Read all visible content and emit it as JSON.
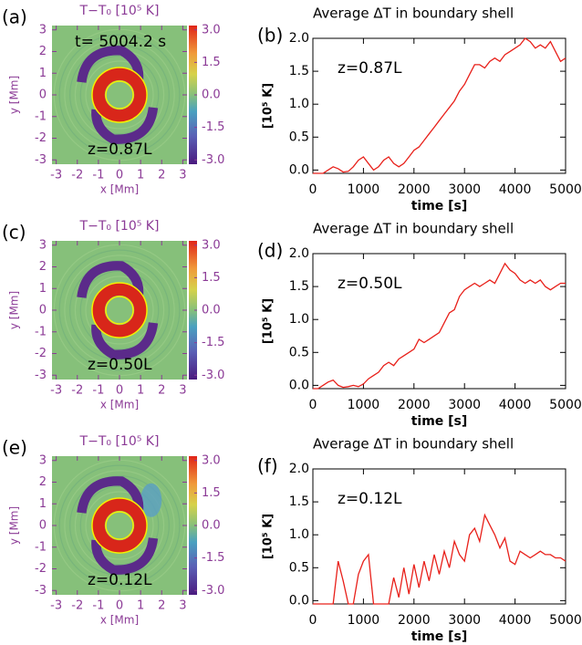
{
  "chart_data": [
    {
      "type": "heatmap",
      "panel_label": "(a)",
      "title": "T−T₀ [10⁵ K]",
      "annotations": [
        "t= 5004.2 s",
        "z=0.87L"
      ],
      "xlabel": "x [Mm]",
      "ylabel": "y [Mm]",
      "xlim": [
        -3.2,
        3.2
      ],
      "ylim": [
        -3.2,
        3.2
      ],
      "xticks": [
        -3,
        -2,
        -1,
        0,
        1,
        2,
        3
      ],
      "yticks": [
        -3,
        -2,
        -1,
        0,
        1,
        2,
        3
      ],
      "clim": [
        -3.2,
        3.2
      ],
      "cticks": [
        {
          "value": -3,
          "label": "-3.0"
        },
        {
          "value": -1.5,
          "label": "-1.5"
        },
        {
          "value": 0,
          "label": "0.0"
        },
        {
          "value": 1.5,
          "label": "1.5"
        },
        {
          "value": 3,
          "label": "3.0"
        }
      ]
    },
    {
      "type": "line",
      "panel_label": "(b)",
      "title": "Average ΔT in boundary shell",
      "annotations": [
        "z=0.87L"
      ],
      "xlabel": "time [s]",
      "ylabel": "[10⁵ K]",
      "color": "#e8201a",
      "xlim": [
        0,
        5000
      ],
      "ylim": [
        -0.05,
        2.0
      ],
      "xticks": [
        0,
        1000,
        2000,
        3000,
        4000,
        5000
      ],
      "yticks": [
        {
          "value": 0,
          "label": "0.0"
        },
        {
          "value": 0.5,
          "label": "0.5"
        },
        {
          "value": 1,
          "label": "1.0"
        },
        {
          "value": 1.5,
          "label": "1.5"
        },
        {
          "value": 2,
          "label": "2.0"
        }
      ],
      "x": [
        0,
        100,
        200,
        300,
        400,
        500,
        600,
        700,
        800,
        900,
        1000,
        1100,
        1200,
        1300,
        1400,
        1500,
        1600,
        1700,
        1800,
        1900,
        2000,
        2100,
        2200,
        2300,
        2400,
        2500,
        2600,
        2700,
        2800,
        2900,
        3000,
        3100,
        3200,
        3300,
        3400,
        3500,
        3600,
        3700,
        3800,
        3900,
        4000,
        4100,
        4200,
        4300,
        4400,
        4500,
        4600,
        4700,
        4800,
        4900,
        5000
      ],
      "values": [
        -0.05,
        -0.05,
        -0.05,
        0.0,
        0.05,
        0.02,
        -0.03,
        -0.02,
        0.05,
        0.15,
        0.2,
        0.1,
        0.0,
        0.05,
        0.15,
        0.2,
        0.1,
        0.05,
        0.1,
        0.2,
        0.3,
        0.35,
        0.45,
        0.55,
        0.65,
        0.75,
        0.85,
        0.95,
        1.05,
        1.2,
        1.3,
        1.45,
        1.6,
        1.6,
        1.55,
        1.65,
        1.7,
        1.65,
        1.75,
        1.8,
        1.85,
        1.9,
        2.0,
        1.95,
        1.85,
        1.9,
        1.85,
        1.95,
        1.8,
        1.65,
        1.7
      ]
    },
    {
      "type": "heatmap",
      "panel_label": "(c)",
      "title": "T−T₀ [10⁵ K]",
      "annotations": [
        "z=0.50L"
      ],
      "xlabel": "x [Mm]",
      "ylabel": "y [Mm]",
      "xlim": [
        -3.2,
        3.2
      ],
      "ylim": [
        -3.2,
        3.2
      ],
      "xticks": [
        -3,
        -2,
        -1,
        0,
        1,
        2,
        3
      ],
      "yticks": [
        -3,
        -2,
        -1,
        0,
        1,
        2,
        3
      ],
      "clim": [
        -3.2,
        3.2
      ],
      "cticks": [
        {
          "value": -3,
          "label": "-3.0"
        },
        {
          "value": -1.5,
          "label": "-1.5"
        },
        {
          "value": 0,
          "label": "0.0"
        },
        {
          "value": 1.5,
          "label": "1.5"
        },
        {
          "value": 3,
          "label": "3.0"
        }
      ]
    },
    {
      "type": "line",
      "panel_label": "(d)",
      "title": "Average ΔT in boundary shell",
      "annotations": [
        "z=0.50L"
      ],
      "xlabel": "time [s]",
      "ylabel": "[10⁵ K]",
      "color": "#e8201a",
      "xlim": [
        0,
        5000
      ],
      "ylim": [
        -0.05,
        2.0
      ],
      "xticks": [
        0,
        1000,
        2000,
        3000,
        4000,
        5000
      ],
      "yticks": [
        {
          "value": 0,
          "label": "0.0"
        },
        {
          "value": 0.5,
          "label": "0.5"
        },
        {
          "value": 1,
          "label": "1.0"
        },
        {
          "value": 1.5,
          "label": "1.5"
        },
        {
          "value": 2,
          "label": "2.0"
        }
      ],
      "x": [
        0,
        100,
        200,
        300,
        400,
        500,
        600,
        700,
        800,
        900,
        1000,
        1100,
        1200,
        1300,
        1400,
        1500,
        1600,
        1700,
        1800,
        1900,
        2000,
        2100,
        2200,
        2300,
        2400,
        2500,
        2600,
        2700,
        2800,
        2900,
        3000,
        3100,
        3200,
        3300,
        3400,
        3500,
        3600,
        3700,
        3800,
        3900,
        4000,
        4100,
        4200,
        4300,
        4400,
        4500,
        4600,
        4700,
        4800,
        4900,
        5000
      ],
      "values": [
        -0.05,
        -0.05,
        0.0,
        0.05,
        0.08,
        0.0,
        -0.03,
        -0.02,
        0.0,
        -0.02,
        0.02,
        0.1,
        0.15,
        0.2,
        0.3,
        0.35,
        0.3,
        0.4,
        0.45,
        0.5,
        0.55,
        0.7,
        0.65,
        0.7,
        0.75,
        0.8,
        0.95,
        1.1,
        1.15,
        1.35,
        1.45,
        1.5,
        1.55,
        1.5,
        1.55,
        1.6,
        1.55,
        1.7,
        1.85,
        1.75,
        1.7,
        1.6,
        1.55,
        1.6,
        1.55,
        1.6,
        1.5,
        1.45,
        1.5,
        1.55,
        1.55
      ]
    },
    {
      "type": "heatmap",
      "panel_label": "(e)",
      "title": "T−T₀ [10⁵ K]",
      "annotations": [
        "z=0.12L"
      ],
      "xlabel": "x [Mm]",
      "ylabel": "y [Mm]",
      "xlim": [
        -3.2,
        3.2
      ],
      "ylim": [
        -3.2,
        3.2
      ],
      "xticks": [
        -3,
        -2,
        -1,
        0,
        1,
        2,
        3
      ],
      "yticks": [
        -3,
        -2,
        -1,
        0,
        1,
        2,
        3
      ],
      "clim": [
        -3.2,
        3.2
      ],
      "cticks": [
        {
          "value": -3,
          "label": "-3.0"
        },
        {
          "value": -1.5,
          "label": "-1.5"
        },
        {
          "value": 0,
          "label": "0.0"
        },
        {
          "value": 1.5,
          "label": "1.5"
        },
        {
          "value": 3,
          "label": "3.0"
        }
      ]
    },
    {
      "type": "line",
      "panel_label": "(f)",
      "title": "Average ΔT in boundary shell",
      "annotations": [
        "z=0.12L"
      ],
      "xlabel": "time [s]",
      "ylabel": "[10⁵ K]",
      "color": "#e8201a",
      "xlim": [
        0,
        5000
      ],
      "ylim": [
        -0.05,
        2.0
      ],
      "xticks": [
        0,
        1000,
        2000,
        3000,
        4000,
        5000
      ],
      "yticks": [
        {
          "value": 0,
          "label": "0.0"
        },
        {
          "value": 0.5,
          "label": "0.5"
        },
        {
          "value": 1,
          "label": "1.0"
        },
        {
          "value": 1.5,
          "label": "1.5"
        },
        {
          "value": 2,
          "label": "2.0"
        }
      ],
      "x": [
        0,
        100,
        200,
        300,
        400,
        500,
        600,
        700,
        800,
        900,
        1000,
        1100,
        1200,
        1300,
        1400,
        1500,
        1600,
        1700,
        1800,
        1900,
        2000,
        2100,
        2200,
        2300,
        2400,
        2500,
        2600,
        2700,
        2800,
        2900,
        3000,
        3100,
        3200,
        3300,
        3400,
        3500,
        3600,
        3700,
        3800,
        3900,
        4000,
        4100,
        4200,
        4300,
        4400,
        4500,
        4600,
        4700,
        4800,
        4900,
        5000
      ],
      "values": [
        -0.05,
        -0.05,
        -0.05,
        -0.05,
        -0.05,
        0.6,
        0.3,
        -0.05,
        -0.05,
        0.4,
        0.6,
        0.7,
        -0.05,
        -0.05,
        -0.05,
        -0.05,
        0.35,
        0.05,
        0.5,
        0.1,
        0.55,
        0.2,
        0.6,
        0.3,
        0.7,
        0.4,
        0.75,
        0.5,
        0.9,
        0.7,
        0.6,
        1.0,
        1.1,
        0.9,
        1.3,
        1.15,
        1.0,
        0.8,
        0.95,
        0.6,
        0.55,
        0.75,
        0.7,
        0.65,
        0.7,
        0.75,
        0.7,
        0.7,
        0.65,
        0.65,
        0.6
      ]
    }
  ]
}
